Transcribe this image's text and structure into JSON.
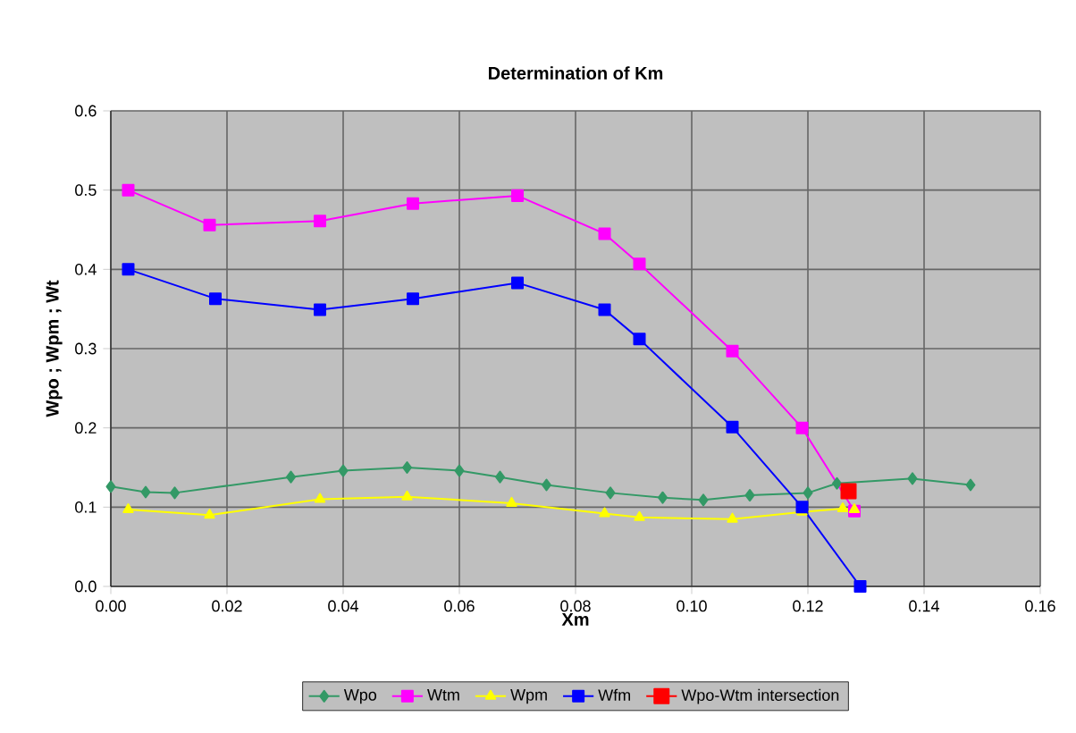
{
  "chart_data": {
    "type": "line",
    "title": "Determination of Km",
    "xlabel": "Xm",
    "ylabel": "Wpo ; Wpm ; Wt",
    "xlim": [
      0,
      0.16
    ],
    "xticks": [
      {
        "value": 0,
        "label": "0.00"
      },
      0.02,
      0.04,
      0.06,
      0.08,
      {
        "value": 0.1,
        "label": "0.10"
      },
      0.12,
      0.14,
      0.16
    ],
    "ylim": [
      0,
      0.6
    ],
    "yticks": [
      {
        "value": 0,
        "label": "0.0"
      },
      0.1,
      0.2,
      0.3,
      0.4,
      0.5,
      0.6
    ],
    "grid": true,
    "legend": "bottom",
    "series": [
      {
        "name": "Wpo",
        "color": "#339966",
        "marker": "diamond",
        "x": [
          0,
          0.006,
          0.011,
          0.031,
          0.04,
          0.051,
          0.06,
          0.067,
          0.075,
          0.086,
          0.095,
          0.102,
          0.11,
          0.12,
          0.125,
          0.138,
          0.148
        ],
        "values": [
          0.126,
          0.119,
          0.118,
          0.138,
          0.146,
          0.15,
          0.146,
          0.138,
          0.128,
          0.118,
          0.112,
          0.109,
          0.115,
          0.118,
          0.13,
          0.136,
          0.128
        ]
      },
      {
        "name": "Wtm",
        "color": "#ff00ff",
        "marker": "square",
        "x": [
          0.003,
          0.017,
          0.036,
          0.052,
          0.07,
          0.085,
          0.091,
          0.107,
          0.119,
          0.128
        ],
        "values": [
          0.5,
          0.456,
          0.461,
          0.483,
          0.493,
          0.445,
          0.407,
          0.297,
          0.2,
          0.095
        ]
      },
      {
        "name": "Wpm",
        "color": "#ffff00",
        "marker": "triangle",
        "x": [
          0.003,
          0.017,
          0.036,
          0.051,
          0.069,
          0.085,
          0.091,
          0.107,
          0.119,
          0.126,
          0.128
        ],
        "values": [
          0.097,
          0.09,
          0.11,
          0.113,
          0.105,
          0.092,
          0.087,
          0.085,
          0.094,
          0.098,
          0.097
        ]
      },
      {
        "name": "Wfm",
        "color": "#0000ff",
        "marker": "square",
        "x": [
          0.003,
          0.018,
          0.036,
          0.052,
          0.07,
          0.085,
          0.091,
          0.107,
          0.119,
          0.129
        ],
        "values": [
          0.4,
          0.363,
          0.349,
          0.363,
          0.383,
          0.349,
          0.312,
          0.201,
          0.1,
          0.0
        ]
      },
      {
        "name": "Wpo-Wtm intersection",
        "color": "#ff0000",
        "marker": "square",
        "x": [
          0.127
        ],
        "values": [
          0.12
        ]
      }
    ]
  }
}
